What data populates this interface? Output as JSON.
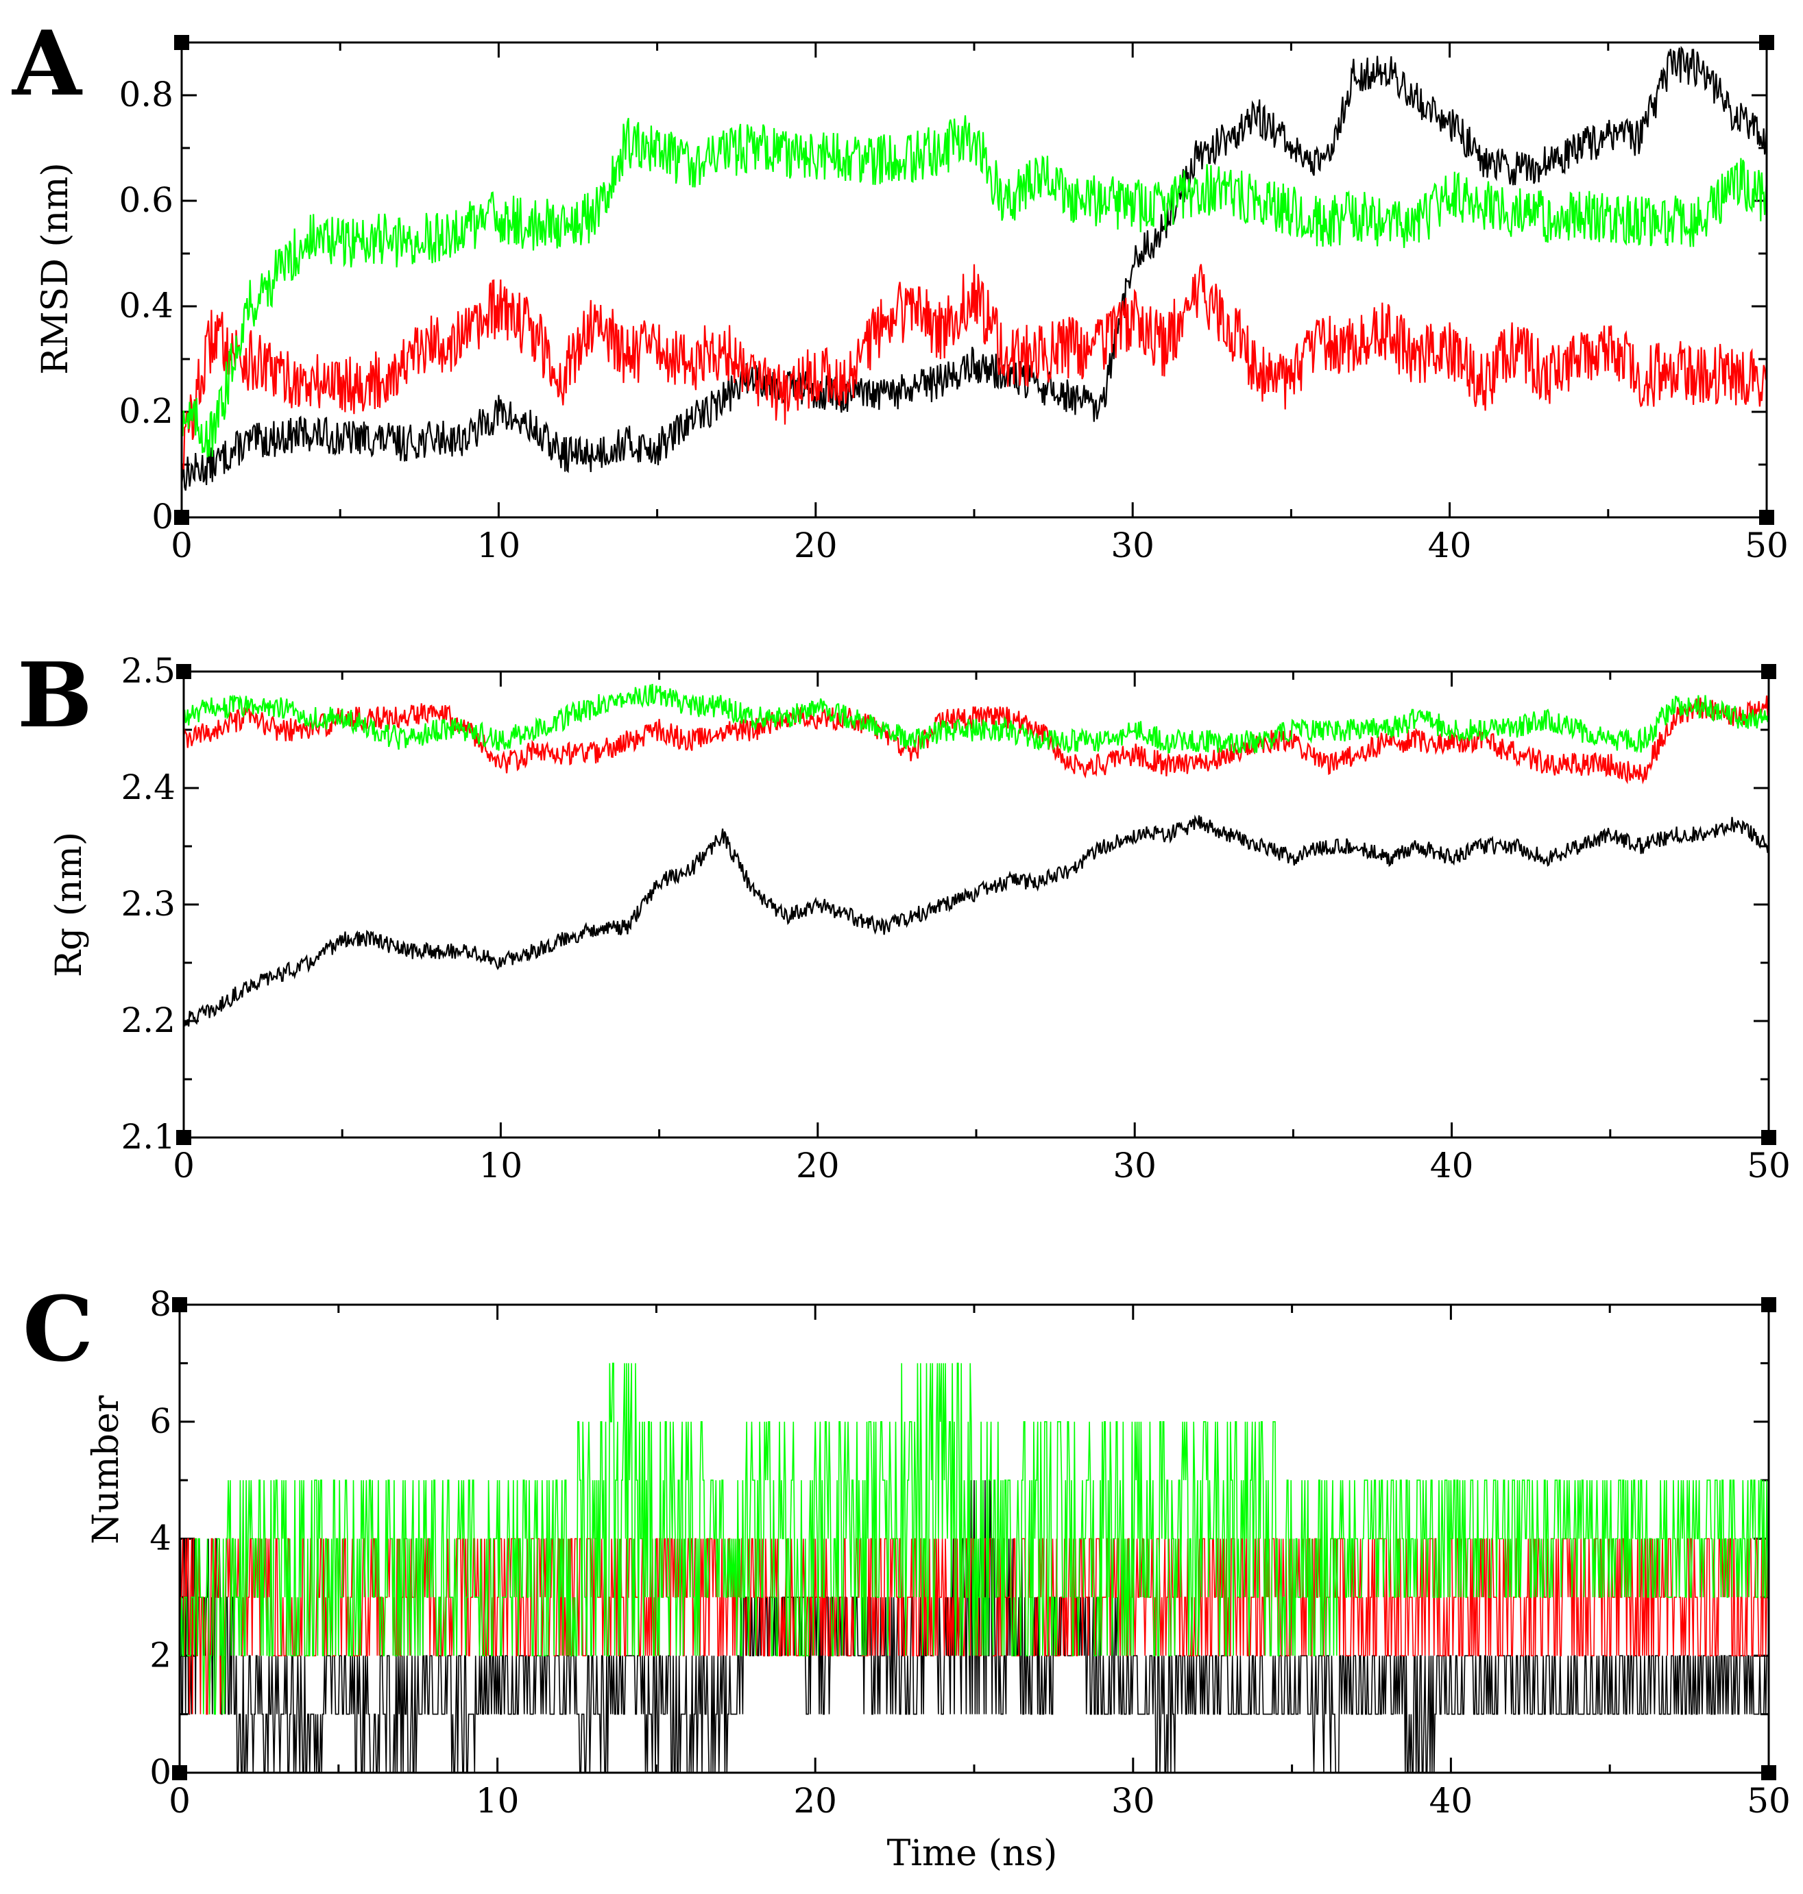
{
  "colors": {
    "black": "#000000",
    "red": "#ff0000",
    "green": "#00ff00"
  },
  "chart_data": [
    {
      "panel": "A",
      "type": "line",
      "xlabel": "",
      "ylabel": "RMSD (nm)",
      "xlim": [
        0,
        50
      ],
      "ylim": [
        0,
        0.9
      ],
      "xticks": [
        0,
        10,
        20,
        30,
        40,
        50
      ],
      "xtick_labels": [
        "0",
        "10",
        "20",
        "30",
        "40",
        "50"
      ],
      "yticks": [
        0,
        0.2,
        0.4,
        0.6,
        0.8
      ],
      "ytick_labels": [
        "0",
        "0.2",
        "0.4",
        "0.6",
        "0.8"
      ],
      "x": [
        0,
        1,
        2,
        3,
        4,
        5,
        6,
        7,
        8,
        9,
        10,
        11,
        12,
        13,
        14,
        15,
        16,
        17,
        18,
        19,
        20,
        21,
        22,
        23,
        24,
        25,
        26,
        27,
        28,
        29,
        30,
        31,
        32,
        33,
        34,
        35,
        36,
        37,
        38,
        39,
        40,
        41,
        42,
        43,
        44,
        45,
        46,
        47,
        48,
        49,
        50
      ],
      "series": [
        {
          "name": "black",
          "color": "#000000",
          "noise": 0.035,
          "values": [
            0.08,
            0.1,
            0.14,
            0.15,
            0.16,
            0.15,
            0.15,
            0.14,
            0.15,
            0.15,
            0.2,
            0.17,
            0.12,
            0.12,
            0.14,
            0.13,
            0.18,
            0.22,
            0.27,
            0.25,
            0.24,
            0.23,
            0.23,
            0.24,
            0.26,
            0.29,
            0.27,
            0.25,
            0.23,
            0.2,
            0.48,
            0.55,
            0.68,
            0.72,
            0.76,
            0.7,
            0.66,
            0.84,
            0.85,
            0.79,
            0.75,
            0.68,
            0.66,
            0.67,
            0.7,
            0.72,
            0.72,
            0.86,
            0.85,
            0.76,
            0.72
          ]
        },
        {
          "name": "red",
          "color": "#ff0000",
          "noise": 0.06,
          "values": [
            0.12,
            0.35,
            0.3,
            0.27,
            0.25,
            0.26,
            0.25,
            0.29,
            0.33,
            0.34,
            0.4,
            0.36,
            0.26,
            0.38,
            0.31,
            0.32,
            0.29,
            0.32,
            0.28,
            0.23,
            0.27,
            0.26,
            0.36,
            0.4,
            0.35,
            0.43,
            0.3,
            0.31,
            0.32,
            0.32,
            0.38,
            0.32,
            0.43,
            0.37,
            0.27,
            0.26,
            0.33,
            0.33,
            0.35,
            0.3,
            0.32,
            0.25,
            0.32,
            0.27,
            0.3,
            0.33,
            0.26,
            0.28,
            0.27,
            0.27,
            0.27
          ]
        },
        {
          "name": "green",
          "color": "#00ff00",
          "noise": 0.05,
          "values": [
            0.2,
            0.15,
            0.39,
            0.46,
            0.53,
            0.52,
            0.53,
            0.52,
            0.53,
            0.55,
            0.57,
            0.55,
            0.56,
            0.57,
            0.71,
            0.69,
            0.67,
            0.69,
            0.7,
            0.69,
            0.68,
            0.68,
            0.68,
            0.68,
            0.7,
            0.72,
            0.59,
            0.66,
            0.6,
            0.6,
            0.59,
            0.59,
            0.62,
            0.62,
            0.6,
            0.58,
            0.56,
            0.57,
            0.56,
            0.55,
            0.62,
            0.59,
            0.58,
            0.57,
            0.57,
            0.57,
            0.56,
            0.56,
            0.56,
            0.64,
            0.6
          ]
        }
      ]
    },
    {
      "panel": "B",
      "type": "line",
      "xlabel": "",
      "ylabel": "Rg (nm)",
      "xlim": [
        0,
        50
      ],
      "ylim": [
        2.1,
        2.5
      ],
      "xticks": [
        0,
        10,
        20,
        30,
        40,
        50
      ],
      "xtick_labels": [
        "0",
        "10",
        "20",
        "30",
        "40",
        "50"
      ],
      "yticks": [
        2.1,
        2.2,
        2.3,
        2.4,
        2.5
      ],
      "ytick_labels": [
        "2.1",
        "2.2",
        "2.3",
        "2.4",
        "2.5"
      ],
      "x": [
        0,
        1,
        2,
        3,
        4,
        5,
        6,
        7,
        8,
        9,
        10,
        11,
        12,
        13,
        14,
        15,
        16,
        17,
        18,
        19,
        20,
        21,
        22,
        23,
        24,
        25,
        26,
        27,
        28,
        29,
        30,
        31,
        32,
        33,
        34,
        35,
        36,
        37,
        38,
        39,
        40,
        41,
        42,
        43,
        44,
        45,
        46,
        47,
        48,
        49,
        50
      ],
      "series": [
        {
          "name": "black",
          "color": "#000000",
          "noise": 0.007,
          "values": [
            2.2,
            2.21,
            2.23,
            2.24,
            2.25,
            2.27,
            2.27,
            2.26,
            2.26,
            2.26,
            2.25,
            2.26,
            2.27,
            2.28,
            2.28,
            2.32,
            2.33,
            2.36,
            2.31,
            2.29,
            2.3,
            2.29,
            2.28,
            2.29,
            2.3,
            2.31,
            2.32,
            2.32,
            2.33,
            2.35,
            2.36,
            2.36,
            2.37,
            2.36,
            2.35,
            2.34,
            2.35,
            2.35,
            2.34,
            2.35,
            2.34,
            2.35,
            2.35,
            2.34,
            2.35,
            2.36,
            2.35,
            2.36,
            2.36,
            2.37,
            2.35
          ]
        },
        {
          "name": "red",
          "color": "#ff0000",
          "noise": 0.01,
          "values": [
            2.44,
            2.45,
            2.46,
            2.45,
            2.45,
            2.46,
            2.46,
            2.46,
            2.47,
            2.45,
            2.42,
            2.43,
            2.43,
            2.43,
            2.44,
            2.45,
            2.44,
            2.45,
            2.45,
            2.46,
            2.46,
            2.46,
            2.45,
            2.43,
            2.46,
            2.46,
            2.46,
            2.45,
            2.42,
            2.42,
            2.43,
            2.42,
            2.42,
            2.43,
            2.44,
            2.44,
            2.42,
            2.43,
            2.44,
            2.44,
            2.44,
            2.44,
            2.43,
            2.42,
            2.42,
            2.42,
            2.41,
            2.46,
            2.47,
            2.46,
            2.47
          ]
        },
        {
          "name": "green",
          "color": "#00ff00",
          "noise": 0.01,
          "values": [
            2.46,
            2.47,
            2.47,
            2.47,
            2.46,
            2.46,
            2.45,
            2.44,
            2.45,
            2.45,
            2.44,
            2.45,
            2.46,
            2.47,
            2.48,
            2.48,
            2.47,
            2.47,
            2.46,
            2.46,
            2.47,
            2.46,
            2.45,
            2.44,
            2.45,
            2.45,
            2.45,
            2.44,
            2.44,
            2.44,
            2.45,
            2.44,
            2.44,
            2.44,
            2.44,
            2.45,
            2.45,
            2.45,
            2.45,
            2.46,
            2.45,
            2.45,
            2.45,
            2.46,
            2.45,
            2.44,
            2.44,
            2.47,
            2.47,
            2.46,
            2.46
          ]
        }
      ]
    },
    {
      "panel": "C",
      "type": "line",
      "xlabel": "Time (ns)",
      "ylabel": "Number",
      "xlim": [
        0,
        50
      ],
      "ylim": [
        0,
        8
      ],
      "xticks": [
        0,
        10,
        20,
        30,
        40,
        50
      ],
      "xtick_labels": [
        "0",
        "10",
        "20",
        "30",
        "40",
        "50"
      ],
      "yticks": [
        0,
        2,
        4,
        6,
        8
      ],
      "ytick_labels": [
        "0",
        "2",
        "4",
        "6",
        "8"
      ],
      "x": [
        0,
        1,
        2,
        3,
        4,
        5,
        6,
        7,
        8,
        9,
        10,
        11,
        12,
        13,
        14,
        15,
        16,
        17,
        18,
        19,
        20,
        21,
        22,
        23,
        24,
        25,
        26,
        27,
        28,
        29,
        30,
        31,
        32,
        33,
        34,
        35,
        36,
        37,
        38,
        39,
        40,
        41,
        42,
        43,
        44,
        45,
        46,
        47,
        48,
        49,
        50
      ],
      "series": [
        {
          "name": "black",
          "color": "#000000",
          "low": [
            1,
            1,
            0,
            0,
            0,
            1,
            0,
            0,
            1,
            0,
            1,
            1,
            1,
            0,
            1,
            0,
            0,
            0,
            2,
            2,
            1,
            2,
            1,
            1,
            1,
            1,
            1,
            1,
            2,
            1,
            1,
            0,
            1,
            1,
            1,
            1,
            0,
            1,
            1,
            0,
            1,
            1,
            1,
            1,
            1,
            1,
            1,
            1,
            1,
            1,
            1
          ],
          "high": [
            4,
            4,
            2,
            2,
            2,
            2,
            2,
            2,
            2,
            2,
            2,
            2,
            2,
            2,
            2,
            2,
            2,
            2,
            3,
            3,
            3,
            3,
            3,
            3,
            3,
            5,
            4,
            3,
            3,
            3,
            2,
            2,
            2,
            2,
            2,
            2,
            2,
            2,
            2,
            2,
            2,
            2,
            2,
            2,
            2,
            2,
            2,
            2,
            2,
            2,
            2
          ]
        },
        {
          "name": "red",
          "color": "#ff0000",
          "low": [
            1,
            1,
            2,
            2,
            2,
            2,
            2,
            2,
            2,
            2,
            2,
            2,
            2,
            2,
            2,
            2,
            2,
            2,
            2,
            2,
            2,
            2,
            2,
            2,
            2,
            2,
            2,
            2,
            2,
            2,
            2,
            2,
            2,
            2,
            2,
            2,
            2,
            2,
            2,
            2,
            2,
            2,
            2,
            2,
            2,
            2,
            2,
            2,
            2,
            2,
            2
          ],
          "high": [
            4,
            4,
            4,
            4,
            4,
            4,
            4,
            4,
            4,
            4,
            4,
            4,
            4,
            4,
            4,
            4,
            4,
            4,
            4,
            4,
            4,
            4,
            4,
            4,
            4,
            4,
            4,
            4,
            4,
            4,
            4,
            4,
            4,
            4,
            4,
            4,
            4,
            4,
            4,
            4,
            4,
            4,
            4,
            4,
            4,
            4,
            4,
            4,
            4,
            4,
            4
          ]
        },
        {
          "name": "green",
          "color": "#00ff00",
          "low": [
            2,
            1,
            2,
            2,
            2,
            2,
            2,
            2,
            2,
            2,
            2,
            2,
            2,
            2,
            2,
            2,
            2,
            3,
            2,
            2,
            2,
            2,
            2,
            2,
            2,
            2,
            2,
            2,
            2,
            2,
            2,
            2,
            2,
            2,
            2,
            2,
            2,
            3,
            3,
            3,
            3,
            3,
            3,
            3,
            3,
            3,
            3,
            3,
            3,
            3,
            3
          ],
          "high": [
            3,
            4,
            5,
            5,
            5,
            5,
            5,
            5,
            5,
            5,
            5,
            5,
            5,
            6,
            7,
            6,
            6,
            5,
            6,
            6,
            6,
            6,
            6,
            7,
            7,
            7,
            5,
            6,
            6,
            6,
            6,
            6,
            6,
            6,
            6,
            5,
            5,
            5,
            5,
            5,
            5,
            5,
            5,
            5,
            5,
            5,
            5,
            5,
            5,
            5,
            5
          ]
        }
      ]
    }
  ],
  "panels": [
    {
      "letter": "A",
      "ylabel": "RMSD (nm)",
      "xlabel": ""
    },
    {
      "letter": "B",
      "ylabel": "Rg (nm)",
      "xlabel": ""
    },
    {
      "letter": "C",
      "ylabel": "Number",
      "xlabel": "Time (ns)"
    }
  ]
}
